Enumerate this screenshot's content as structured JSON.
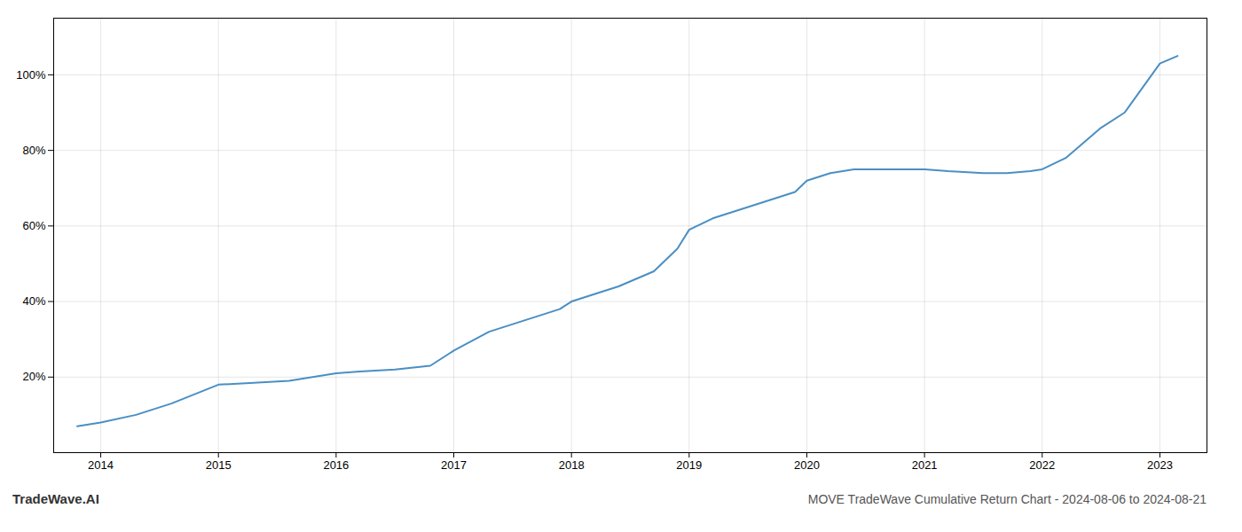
{
  "chart_data": {
    "type": "line",
    "title": "MOVE TradeWave Cumulative Return Chart - 2024-08-06 to 2024-08-21",
    "annotations": [
      "TradeWave.AI"
    ],
    "x": [
      2013.8,
      2014.0,
      2014.3,
      2014.6,
      2015.0,
      2015.3,
      2015.6,
      2016.0,
      2016.2,
      2016.5,
      2016.8,
      2017.0,
      2017.3,
      2017.6,
      2017.9,
      2018.0,
      2018.2,
      2018.4,
      2018.7,
      2018.9,
      2019.0,
      2019.2,
      2019.5,
      2019.7,
      2019.9,
      2020.0,
      2020.2,
      2020.4,
      2020.6,
      2020.8,
      2021.0,
      2021.2,
      2021.5,
      2021.7,
      2021.9,
      2022.0,
      2022.2,
      2022.5,
      2022.7,
      2023.0,
      2023.15
    ],
    "values": [
      7,
      8,
      10,
      13,
      18,
      18.5,
      19,
      21,
      21.5,
      22,
      23,
      27,
      32,
      35,
      38,
      40,
      42,
      44,
      48,
      54,
      59,
      62,
      65,
      67,
      69,
      72,
      74,
      75,
      75,
      75,
      75,
      74.5,
      74,
      74,
      74.5,
      75,
      78,
      86,
      90,
      103,
      105
    ],
    "color": "#4a8fc4",
    "xlim": [
      2013.6,
      2023.4
    ],
    "ylim": [
      0,
      115
    ],
    "xticks": [
      2014,
      2015,
      2016,
      2017,
      2018,
      2019,
      2020,
      2021,
      2022,
      2023
    ],
    "yticks": [
      {
        "value": 20,
        "label": "20%"
      },
      {
        "value": 40,
        "label": "40%"
      },
      {
        "value": 60,
        "label": "60%"
      },
      {
        "value": 80,
        "label": "80%"
      },
      {
        "value": 100,
        "label": "100%"
      }
    ],
    "grid": true
  }
}
